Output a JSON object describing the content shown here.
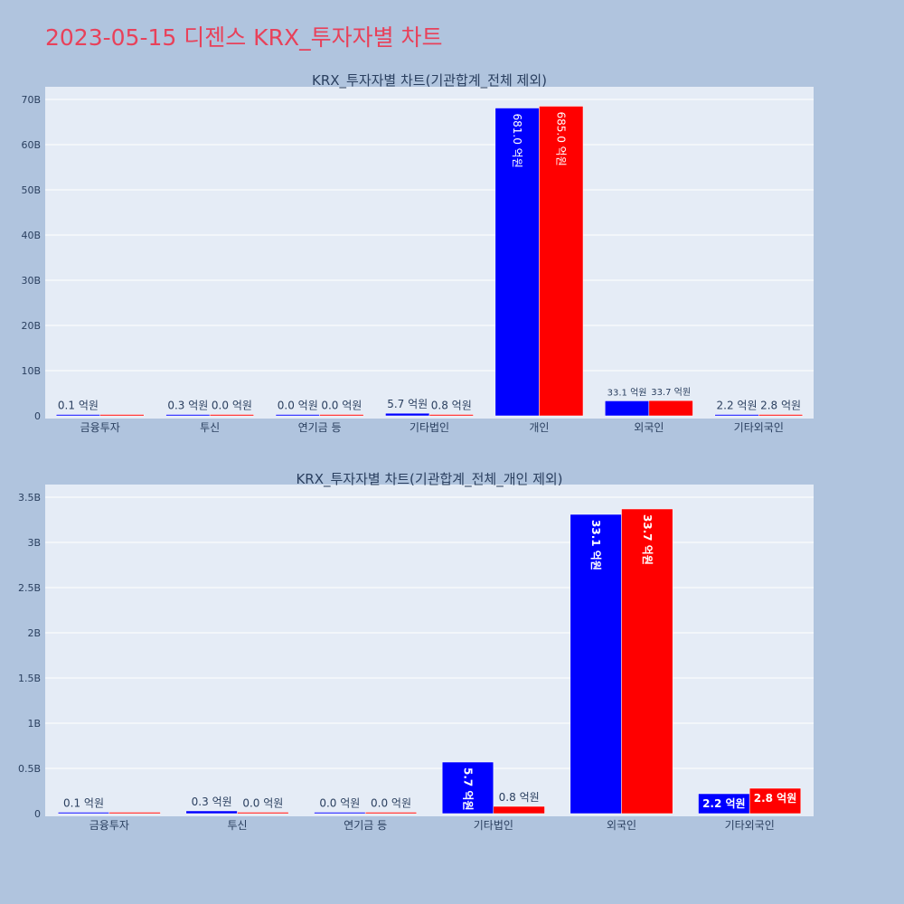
{
  "page_title": "2023-05-15 디젠스 KRX_투자자별 차트",
  "colors": {
    "buy": "#0000ff",
    "sell": "#ff0000",
    "plot_bg": "#e5ecf6",
    "page_bg": "#b0c4de",
    "title": "#e8415a"
  },
  "chart_data": [
    {
      "type": "bar",
      "title": "KRX_투자자별 차트(기관합계_전체 제외)",
      "categories": [
        "금융투자",
        "투신",
        "연기금 등",
        "기타법인",
        "개인",
        "외국인",
        "기타외국인"
      ],
      "series": [
        {
          "color": "#0000ff",
          "values": [
            10000000,
            30000000,
            0,
            570000000,
            68100000000,
            3310000000,
            220000000
          ],
          "labels": [
            "0.1 억원",
            "0.3 억원",
            "0.0 억원",
            "5.7 억원",
            "681.0 억원",
            "33.1 억원",
            "2.2 억원"
          ]
        },
        {
          "color": "#ff0000",
          "values": [
            0,
            0,
            0,
            80000000,
            68500000000,
            3370000000,
            280000000
          ],
          "labels": [
            "",
            "0.0 억원",
            "0.0 억원",
            "0.8 억원",
            "685.0 억원",
            "33.7 억원",
            "2.8 억원"
          ]
        }
      ],
      "ylim": [
        0,
        70000000000
      ],
      "yticks": [
        0,
        10000000000,
        20000000000,
        30000000000,
        40000000000,
        50000000000,
        60000000000,
        70000000000
      ],
      "ytick_labels": [
        "0",
        "10B",
        "20B",
        "30B",
        "40B",
        "50B",
        "60B",
        "70B"
      ],
      "grid": true
    },
    {
      "type": "bar",
      "title": "KRX_투자자별 차트(기관합계_전체_개인 제외)",
      "categories": [
        "금융투자",
        "투신",
        "연기금 등",
        "기타법인",
        "외국인",
        "기타외국인"
      ],
      "series": [
        {
          "color": "#0000ff",
          "values": [
            10000000,
            30000000,
            0,
            570000000,
            3310000000,
            220000000
          ],
          "labels": [
            "0.1 억원",
            "0.3 억원",
            "0.0 억원",
            "5.7 억원",
            "33.1 억원",
            "2.2 억원"
          ]
        },
        {
          "color": "#ff0000",
          "values": [
            0,
            0,
            0,
            80000000,
            3370000000,
            280000000
          ],
          "labels": [
            "",
            "0.0 억원",
            "0.0 억원",
            "0.8 억원",
            "33.7 억원",
            "2.8 억원"
          ]
        }
      ],
      "ylim": [
        0,
        3500000000
      ],
      "yticks": [
        0,
        500000000,
        1000000000,
        1500000000,
        2000000000,
        2500000000,
        3000000000,
        3500000000
      ],
      "ytick_labels": [
        "0",
        "0.5B",
        "1B",
        "1.5B",
        "2B",
        "2.5B",
        "3B",
        "3.5B"
      ],
      "grid": true
    }
  ]
}
